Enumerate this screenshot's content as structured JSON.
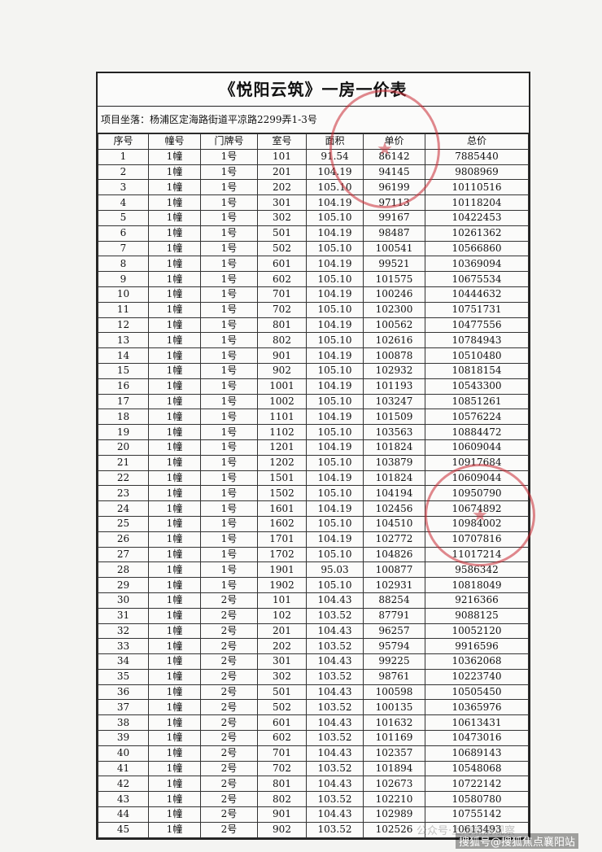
{
  "header": {
    "title": "《悦阳云筑》一房一价表",
    "location": "项目坐落：杨浦区定海路街道平凉路2299弄1-3号"
  },
  "table": {
    "columns": [
      "序号",
      "幢号",
      "门牌号",
      "室号",
      "面积",
      "单价",
      "总价"
    ],
    "rows": [
      [
        "1",
        "1幢",
        "1号",
        "101",
        "91.54",
        "86142",
        "7885440"
      ],
      [
        "2",
        "1幢",
        "1号",
        "201",
        "104.19",
        "94145",
        "9808969"
      ],
      [
        "3",
        "1幢",
        "1号",
        "202",
        "105.10",
        "96199",
        "10110516"
      ],
      [
        "4",
        "1幢",
        "1号",
        "301",
        "104.19",
        "97113",
        "10118204"
      ],
      [
        "5",
        "1幢",
        "1号",
        "302",
        "105.10",
        "99167",
        "10422453"
      ],
      [
        "6",
        "1幢",
        "1号",
        "501",
        "104.19",
        "98487",
        "10261362"
      ],
      [
        "7",
        "1幢",
        "1号",
        "502",
        "105.10",
        "100541",
        "10566860"
      ],
      [
        "8",
        "1幢",
        "1号",
        "601",
        "104.19",
        "99521",
        "10369094"
      ],
      [
        "9",
        "1幢",
        "1号",
        "602",
        "105.10",
        "101575",
        "10675534"
      ],
      [
        "10",
        "1幢",
        "1号",
        "701",
        "104.19",
        "100246",
        "10444632"
      ],
      [
        "11",
        "1幢",
        "1号",
        "702",
        "105.10",
        "102300",
        "10751731"
      ],
      [
        "12",
        "1幢",
        "1号",
        "801",
        "104.19",
        "100562",
        "10477556"
      ],
      [
        "13",
        "1幢",
        "1号",
        "802",
        "105.10",
        "102616",
        "10784943"
      ],
      [
        "14",
        "1幢",
        "1号",
        "901",
        "104.19",
        "100878",
        "10510480"
      ],
      [
        "15",
        "1幢",
        "1号",
        "902",
        "105.10",
        "102932",
        "10818154"
      ],
      [
        "16",
        "1幢",
        "1号",
        "1001",
        "104.19",
        "101193",
        "10543300"
      ],
      [
        "17",
        "1幢",
        "1号",
        "1002",
        "105.10",
        "103247",
        "10851261"
      ],
      [
        "18",
        "1幢",
        "1号",
        "1101",
        "104.19",
        "101509",
        "10576224"
      ],
      [
        "19",
        "1幢",
        "1号",
        "1102",
        "105.10",
        "103563",
        "10884472"
      ],
      [
        "20",
        "1幢",
        "1号",
        "1201",
        "104.19",
        "101824",
        "10609044"
      ],
      [
        "21",
        "1幢",
        "1号",
        "1202",
        "105.10",
        "103879",
        "10917684"
      ],
      [
        "22",
        "1幢",
        "1号",
        "1501",
        "104.19",
        "101824",
        "10609044"
      ],
      [
        "23",
        "1幢",
        "1号",
        "1502",
        "105.10",
        "104194",
        "10950790"
      ],
      [
        "24",
        "1幢",
        "1号",
        "1601",
        "104.19",
        "102456",
        "10674892"
      ],
      [
        "25",
        "1幢",
        "1号",
        "1602",
        "105.10",
        "104510",
        "10984002"
      ],
      [
        "26",
        "1幢",
        "1号",
        "1701",
        "104.19",
        "102772",
        "10707816"
      ],
      [
        "27",
        "1幢",
        "1号",
        "1702",
        "105.10",
        "104826",
        "11017214"
      ],
      [
        "28",
        "1幢",
        "1号",
        "1901",
        "95.03",
        "100877",
        "9586342"
      ],
      [
        "29",
        "1幢",
        "1号",
        "1902",
        "105.10",
        "102931",
        "10818049"
      ],
      [
        "30",
        "1幢",
        "2号",
        "101",
        "104.43",
        "88254",
        "9216366"
      ],
      [
        "31",
        "1幢",
        "2号",
        "102",
        "103.52",
        "87791",
        "9088125"
      ],
      [
        "32",
        "1幢",
        "2号",
        "201",
        "104.43",
        "96257",
        "10052120"
      ],
      [
        "33",
        "1幢",
        "2号",
        "202",
        "103.52",
        "95794",
        "9916596"
      ],
      [
        "34",
        "1幢",
        "2号",
        "301",
        "104.43",
        "99225",
        "10362068"
      ],
      [
        "35",
        "1幢",
        "2号",
        "302",
        "103.52",
        "98761",
        "10223740"
      ],
      [
        "36",
        "1幢",
        "2号",
        "501",
        "104.43",
        "100598",
        "10505450"
      ],
      [
        "37",
        "1幢",
        "2号",
        "502",
        "103.52",
        "100135",
        "10365976"
      ],
      [
        "38",
        "1幢",
        "2号",
        "601",
        "104.43",
        "101632",
        "10613431"
      ],
      [
        "39",
        "1幢",
        "2号",
        "602",
        "103.52",
        "101169",
        "10473016"
      ],
      [
        "40",
        "1幢",
        "2号",
        "701",
        "104.43",
        "102357",
        "10689143"
      ],
      [
        "41",
        "1幢",
        "2号",
        "702",
        "103.52",
        "101894",
        "10548068"
      ],
      [
        "42",
        "1幢",
        "2号",
        "801",
        "104.43",
        "102673",
        "10722142"
      ],
      [
        "43",
        "1幢",
        "2号",
        "802",
        "103.52",
        "102210",
        "10580780"
      ],
      [
        "44",
        "1幢",
        "2号",
        "901",
        "104.43",
        "102989",
        "10755142"
      ],
      [
        "45",
        "1幢",
        "2号",
        "902",
        "103.52",
        "102526",
        "10613493"
      ]
    ]
  },
  "watermarks": [
    "公众号·上海新房观察",
    "搜狐号@搜狐焦点襄阳站"
  ]
}
